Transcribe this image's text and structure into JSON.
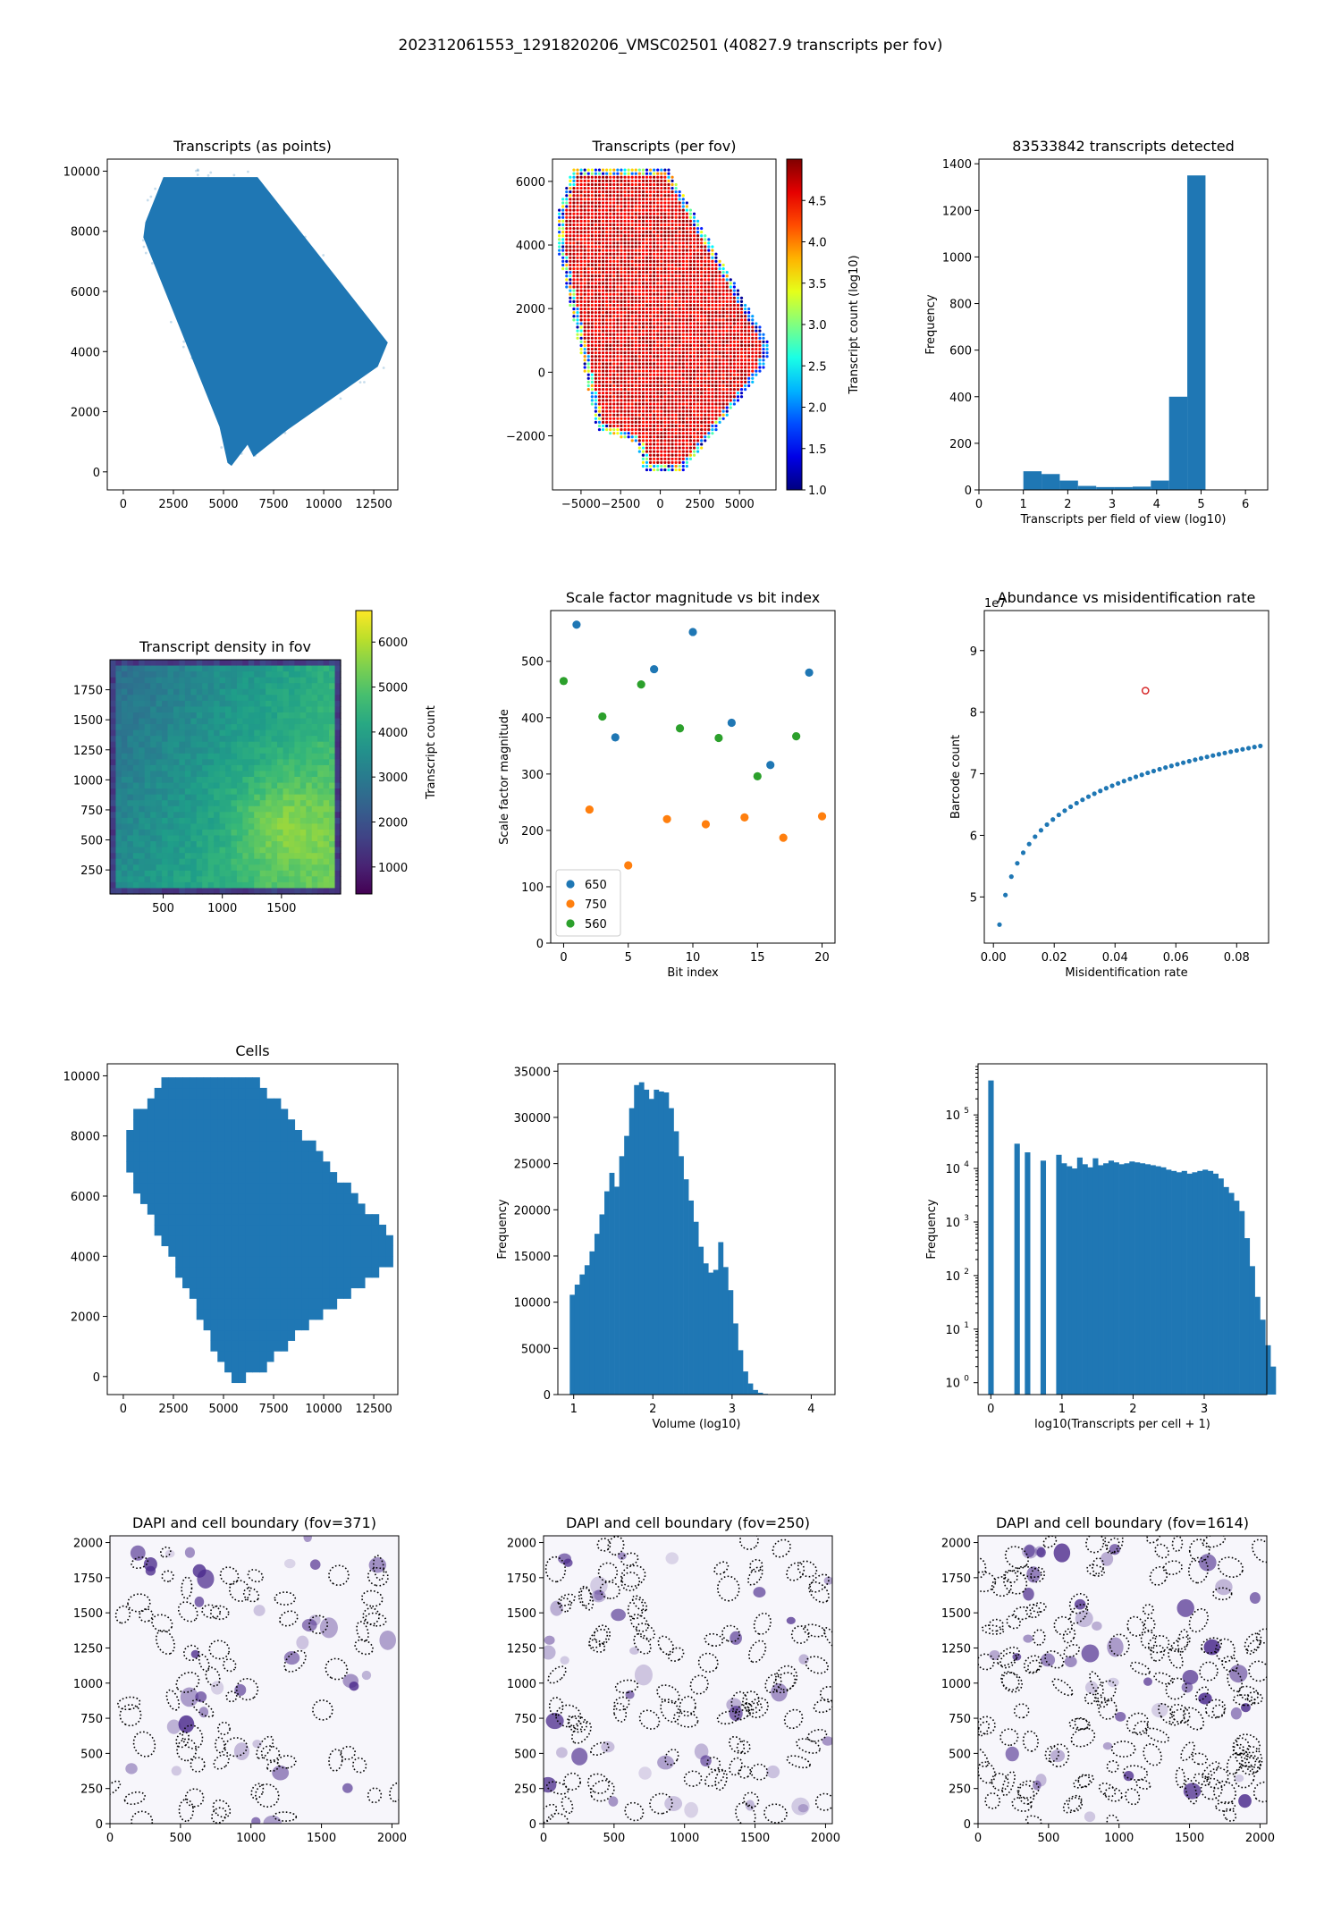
{
  "suptitle": "202312061553_1291820206_VMSC02501 (40827.9 transcripts per fov)",
  "colors": {
    "c0": "#1f77b4",
    "c1": "#ff7f0e",
    "c2": "#2ca02c",
    "red": "#d62728",
    "dapi": "#4b2a8c"
  },
  "chart_data": [
    {
      "id": "p1",
      "type": "scatter",
      "title": "Transcripts (as points)",
      "xlabel": "",
      "ylabel": "",
      "xlim": [
        -800,
        13700
      ],
      "ylim": [
        -600,
        10400
      ],
      "xticks": [
        0,
        2500,
        5000,
        7500,
        10000,
        12500
      ],
      "yticks": [
        0,
        2000,
        4000,
        6000,
        8000,
        10000
      ],
      "polygon": [
        [
          1000,
          7800
        ],
        [
          1100,
          8300
        ],
        [
          2000,
          9800
        ],
        [
          6700,
          9800
        ],
        [
          13200,
          4300
        ],
        [
          12700,
          3500
        ],
        [
          8200,
          1400
        ],
        [
          6500,
          500
        ],
        [
          6200,
          900
        ],
        [
          5400,
          200
        ],
        [
          5200,
          300
        ],
        [
          4800,
          1500
        ]
      ],
      "faint_fringe": true
    },
    {
      "id": "p2",
      "type": "scatter",
      "title": "Transcripts (per fov)",
      "xlabel": "",
      "ylabel": "",
      "xlim": [
        -6800,
        7300
      ],
      "ylim": [
        -3700,
        6700
      ],
      "xticks": [
        -5000,
        -2500,
        0,
        2500,
        5000
      ],
      "xticklabels": [
        "−5000",
        "−2500",
        "0",
        "2500",
        "5000"
      ],
      "yticks": [
        -2000,
        0,
        2000,
        4000,
        6000
      ],
      "yticklabels": [
        "−2000",
        "0",
        "2000",
        "4000",
        "6000"
      ],
      "polygon": [
        [
          -5500,
          6400
        ],
        [
          -4500,
          6400
        ],
        [
          500,
          6400
        ],
        [
          7000,
          800
        ],
        [
          6500,
          100
        ],
        [
          1500,
          -3100
        ],
        [
          -1000,
          -3100
        ],
        [
          -1500,
          -2200
        ],
        [
          -4000,
          -1800
        ],
        [
          -6500,
          4000
        ],
        [
          -6500,
          4900
        ]
      ],
      "colorbar": {
        "label": "Transcript count (log10)",
        "min": 1.0,
        "max": 5.0,
        "ticks": [
          1.0,
          1.5,
          2.0,
          2.5,
          3.0,
          3.5,
          4.0,
          4.5
        ],
        "ticklabels": [
          "1.0",
          "1.5",
          "2.0",
          "2.5",
          "3.0",
          "3.5",
          "4.0",
          "4.5"
        ]
      }
    },
    {
      "id": "p3",
      "type": "bar",
      "title": "83533842 transcripts detected",
      "xlabel": "Transcripts per field of view (log10)",
      "ylabel": "Frequency",
      "xlim": [
        0,
        6.5
      ],
      "ylim": [
        0,
        1420
      ],
      "xticks": [
        0,
        1,
        2,
        3,
        4,
        5,
        6
      ],
      "yticks": [
        0,
        200,
        400,
        600,
        800,
        1000,
        1200,
        1400
      ],
      "bins": [
        1.0,
        1.41,
        1.82,
        2.23,
        2.64,
        3.05,
        3.46,
        3.87,
        4.28,
        4.69
      ],
      "bin_width": 0.41,
      "values": [
        80,
        68,
        40,
        17,
        12,
        12,
        14,
        40,
        400,
        1350
      ]
    },
    {
      "id": "p4",
      "type": "heatmap",
      "title": "Transcript density in fov",
      "xlabel": "",
      "ylabel": "",
      "xlim": [
        50,
        2000
      ],
      "ylim": [
        50,
        2000
      ],
      "xticks": [
        500,
        1000,
        1500
      ],
      "yticks": [
        250,
        500,
        750,
        1000,
        1250,
        1500,
        1750
      ],
      "colorbar": {
        "label": "Transcript count",
        "min": 400,
        "max": 6700,
        "ticks": [
          1000,
          2000,
          3000,
          4000,
          5000,
          6000
        ],
        "ticklabels": [
          "1000",
          "2000",
          "3000",
          "4000",
          "5000",
          "6000"
        ]
      }
    },
    {
      "id": "p5",
      "type": "scatter",
      "title": "Scale factor magnitude vs bit index",
      "xlabel": "Bit index",
      "ylabel": "Scale factor magnitude",
      "xlim": [
        -1,
        21
      ],
      "ylim": [
        0,
        590
      ],
      "xticks": [
        0,
        5,
        10,
        15,
        20
      ],
      "yticks": [
        0,
        100,
        200,
        300,
        400,
        500
      ],
      "series": [
        {
          "name": "650",
          "x": [
            1,
            4,
            7,
            10,
            13,
            16,
            19
          ],
          "y": [
            565,
            365,
            486,
            552,
            391,
            316,
            480
          ]
        },
        {
          "name": "750",
          "x": [
            2,
            5,
            8,
            11,
            14,
            17,
            20
          ],
          "y": [
            237,
            138,
            220,
            211,
            223,
            187,
            225
          ]
        },
        {
          "name": "560",
          "x": [
            0,
            3,
            6,
            9,
            12,
            15,
            18
          ],
          "y": [
            465,
            402,
            459,
            381,
            364,
            296,
            367
          ]
        }
      ],
      "legend": "lower-left"
    },
    {
      "id": "p6",
      "type": "scatter",
      "title": "Abundance vs misidentification rate",
      "xlabel": "Misidentification rate",
      "ylabel": "Barcode count",
      "xlim": [
        -0.003,
        0.0905
      ],
      "ylim": [
        4.25,
        9.65
      ],
      "xticks": [
        0.0,
        0.02,
        0.04,
        0.06,
        0.08
      ],
      "xticklabels": [
        "0.00",
        "0.02",
        "0.04",
        "0.06",
        "0.08"
      ],
      "yticks": [
        5,
        6,
        7,
        8,
        9
      ],
      "offset_label": "1e7",
      "highlight": {
        "x": 0.05,
        "y": 8.35
      }
    },
    {
      "id": "p7",
      "type": "scatter",
      "title": "Cells",
      "xlabel": "",
      "ylabel": "",
      "xlim": [
        -800,
        13700
      ],
      "ylim": [
        -600,
        10400
      ],
      "xticks": [
        0,
        2500,
        5000,
        7500,
        10000,
        12500
      ],
      "yticks": [
        0,
        2000,
        4000,
        6000,
        8000,
        10000
      ],
      "polygon": [
        [
          0,
          7800
        ],
        [
          700,
          8800
        ],
        [
          2000,
          9800
        ],
        [
          6800,
          9800
        ],
        [
          13500,
          4500
        ],
        [
          13500,
          3900
        ],
        [
          8300,
          1200
        ],
        [
          7400,
          500
        ],
        [
          6700,
          100
        ],
        [
          5500,
          -100
        ],
        [
          5000,
          300
        ],
        [
          2000,
          4500
        ],
        [
          0,
          7100
        ]
      ]
    },
    {
      "id": "p8",
      "type": "bar",
      "title": "",
      "xlabel": "Volume (log10)",
      "ylabel": "Frequency",
      "xlim": [
        0.8,
        4.3
      ],
      "ylim": [
        0,
        35800
      ],
      "xticks": [
        1,
        2,
        3,
        4
      ],
      "yticks": [
        0,
        5000,
        10000,
        15000,
        20000,
        25000,
        30000,
        35000
      ],
      "bin_start": 0.95,
      "bin_width": 0.0625,
      "values": [
        10800,
        11900,
        13000,
        14000,
        15500,
        17400,
        19500,
        22000,
        24000,
        22500,
        25800,
        28000,
        31000,
        33500,
        33800,
        33000,
        32000,
        33000,
        32800,
        32700,
        31000,
        28500,
        25800,
        23300,
        21000,
        18700,
        16000,
        14200,
        13200,
        13500,
        16500,
        13800,
        11300,
        7700,
        4800,
        2500,
        1200,
        500,
        200,
        80,
        30,
        10,
        5,
        3,
        2,
        1,
        1,
        1,
        1,
        1
      ]
    },
    {
      "id": "p9",
      "type": "bar",
      "title": "",
      "xlabel": "log10(Transcripts per cell + 1)",
      "ylabel": "Frequency",
      "yscale": "log",
      "xlim": [
        -0.18,
        3.88
      ],
      "ylim": [
        0.6,
        900000
      ],
      "xticks": [
        0,
        1,
        2,
        3
      ],
      "yticks": [
        1,
        10,
        100,
        1000,
        10000,
        100000
      ],
      "bin_width": 0.0735,
      "values": [
        440000,
        0,
        0,
        0,
        0,
        29000,
        0,
        20000,
        0,
        0,
        14000,
        0,
        0,
        18000,
        12500,
        11000,
        10000,
        16000,
        12000,
        10500,
        15500,
        11500,
        12500,
        14000,
        13000,
        12000,
        12500,
        13500,
        13000,
        12500,
        12000,
        11500,
        11000,
        10500,
        9500,
        9000,
        8500,
        9000,
        8000,
        8500,
        9000,
        9500,
        9000,
        8000,
        6500,
        4500,
        3500,
        2500,
        1600,
        500,
        150,
        40,
        15,
        5,
        2
      ]
    },
    {
      "id": "p10",
      "type": "scatter",
      "title": "DAPI and cell boundary (fov=371)",
      "xlabel": "",
      "ylabel": "",
      "xlim": [
        0,
        2048
      ],
      "ylim": [
        0,
        2048
      ],
      "xticks": [
        0,
        500,
        1000,
        1500,
        2000
      ],
      "yticks": [
        0,
        250,
        500,
        750,
        1000,
        1250,
        1500,
        1750,
        2000
      ]
    },
    {
      "id": "p11",
      "type": "scatter",
      "title": "DAPI and cell boundary (fov=250)",
      "xlabel": "",
      "ylabel": "",
      "xlim": [
        0,
        2048
      ],
      "ylim": [
        0,
        2048
      ],
      "xticks": [
        0,
        500,
        1000,
        1500,
        2000
      ],
      "yticks": [
        0,
        250,
        500,
        750,
        1000,
        1250,
        1500,
        1750,
        2000
      ]
    },
    {
      "id": "p12",
      "type": "scatter",
      "title": "DAPI and cell boundary (fov=1614)",
      "xlabel": "",
      "ylabel": "",
      "xlim": [
        0,
        2048
      ],
      "ylim": [
        0,
        2048
      ],
      "xticks": [
        0,
        500,
        1000,
        1500,
        2000
      ],
      "yticks": [
        0,
        250,
        500,
        750,
        1000,
        1250,
        1500,
        1750,
        2000
      ]
    }
  ]
}
